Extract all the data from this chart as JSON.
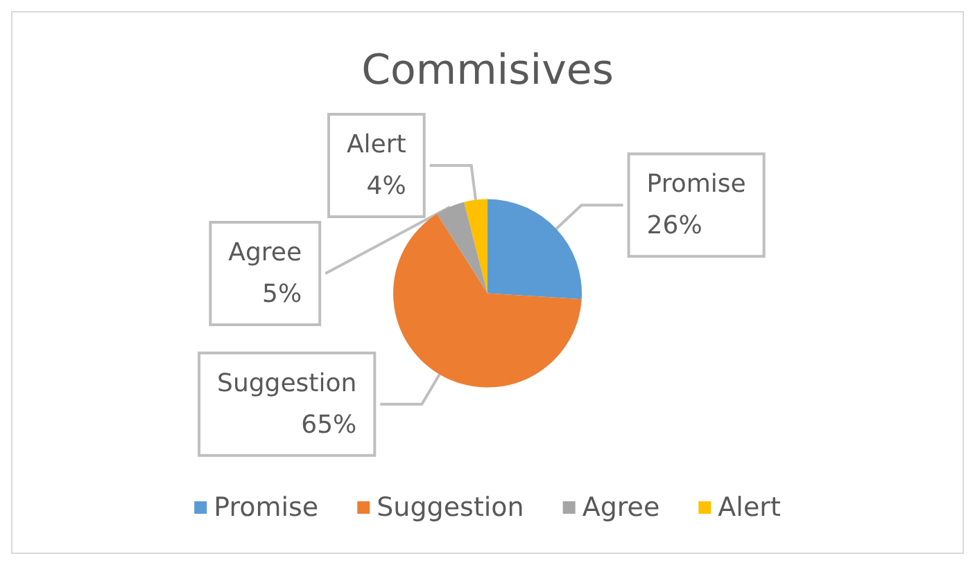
{
  "chart_data": {
    "type": "pie",
    "title": "Commisives",
    "categories": [
      "Promise",
      "Suggestion",
      "Agree",
      "Alert"
    ],
    "values": [
      26,
      65,
      5,
      4
    ],
    "colors": [
      "#5b9bd5",
      "#ed7d31",
      "#a5a5a5",
      "#ffc000"
    ],
    "value_labels": [
      "26%",
      "65%",
      "5%",
      "4%"
    ],
    "legend": "bottom"
  }
}
